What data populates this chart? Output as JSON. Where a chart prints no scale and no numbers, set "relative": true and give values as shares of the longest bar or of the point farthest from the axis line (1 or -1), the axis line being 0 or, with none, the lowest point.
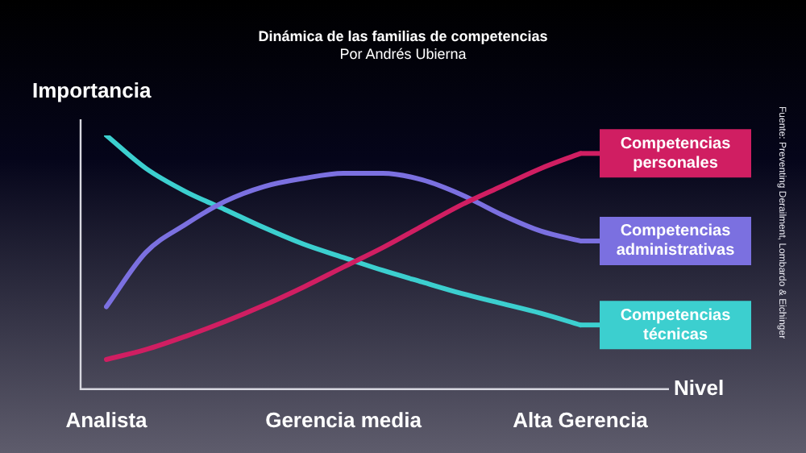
{
  "chart_data": {
    "type": "line",
    "title": "Dinámica de las familias de competencias",
    "subtitle": "Por Andrés Ubierna",
    "ylabel": "Importancia",
    "xlabel": "Nivel",
    "relative": true,
    "grid": false,
    "legend": "right",
    "marker": "none",
    "line_style": "solid",
    "categories": [
      "Analista",
      null,
      null,
      null,
      null,
      null,
      "Gerencia media",
      null,
      null,
      null,
      null,
      null,
      "Alta Gerencia"
    ],
    "series": [
      {
        "name": "Competencias personales",
        "color": "#d01e62",
        "values": [
          0.117,
          0.156,
          0.208,
          0.266,
          0.331,
          0.403,
          0.481,
          0.558,
          0.643,
          0.727,
          0.799,
          0.87,
          0.929
        ]
      },
      {
        "name": "Competencias administrativas",
        "color": "#7b70e0",
        "values": [
          0.325,
          0.539,
          0.649,
          0.74,
          0.799,
          0.831,
          0.851,
          0.851,
          0.825,
          0.766,
          0.688,
          0.623,
          0.584
        ]
      },
      {
        "name": "Competencias técnicas",
        "color": "#3ccfcf",
        "values": [
          1,
          0.87,
          0.779,
          0.708,
          0.636,
          0.571,
          0.519,
          0.468,
          0.422,
          0.377,
          0.338,
          0.299,
          0.253
        ]
      }
    ],
    "annotations": [
      "Fuente: Preventing Derailment, Lombardo & Eichinger"
    ]
  }
}
